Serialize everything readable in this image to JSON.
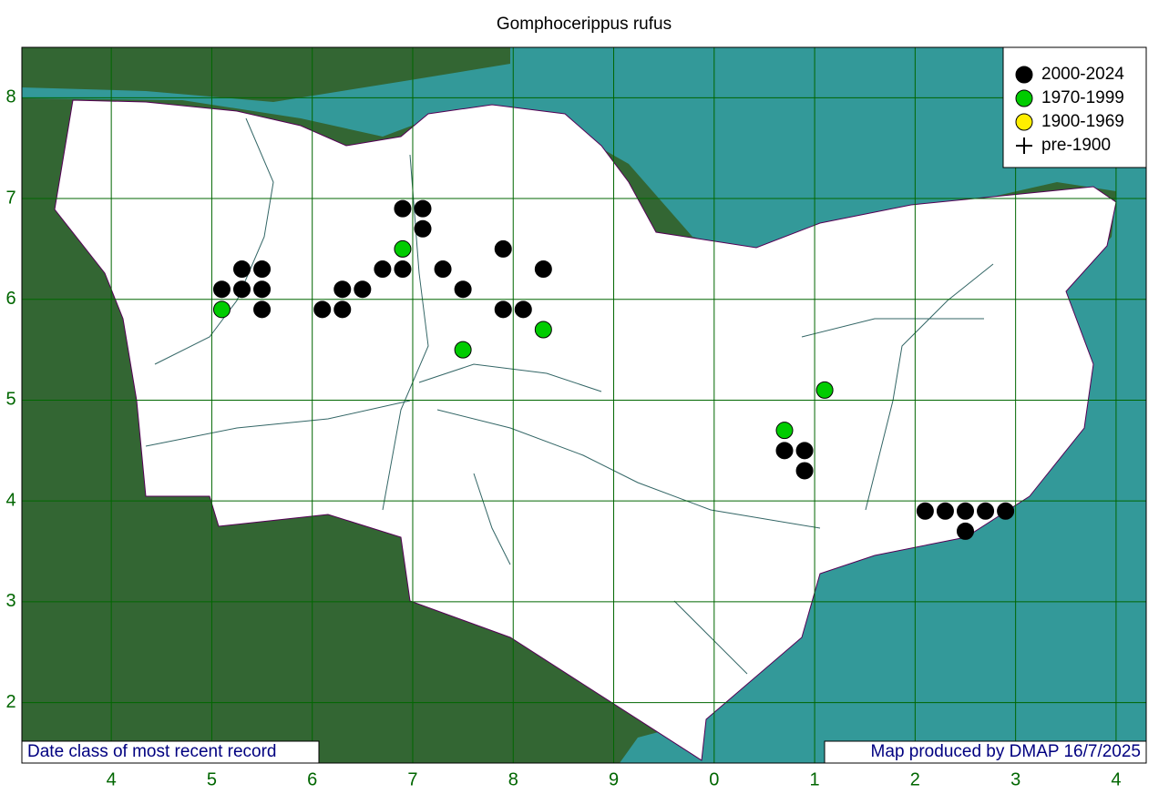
{
  "chart_data": {
    "type": "scatter",
    "title": "Gomphocerippus rufus",
    "footnote_left": "Date class of most recent record",
    "footnote_right": "Map produced by DMAP 16/7/2025",
    "xlim": [
      3.11,
      14.3
    ],
    "ylim": [
      1.4,
      8.5
    ],
    "xticks": [
      4,
      5,
      6,
      7,
      8,
      9,
      {
        "value": 10,
        "label": "0"
      },
      {
        "value": 11,
        "label": "1"
      },
      {
        "value": 12,
        "label": "2"
      },
      {
        "value": 13,
        "label": "3"
      },
      {
        "value": 14,
        "label": "4"
      }
    ],
    "yticks": [
      2,
      3,
      4,
      5,
      6,
      7,
      8
    ],
    "grid": true,
    "legend": "top-right",
    "series": [
      {
        "name": "2000-2024",
        "color": "#000000",
        "marker": "circle",
        "x": [
          6.9,
          7.1,
          7.1,
          5.1,
          5.3,
          5.5,
          5.3,
          5.5,
          5.5,
          6.1,
          6.3,
          6.3,
          6.5,
          6.7,
          6.9,
          7.3,
          7.5,
          7.9,
          8.3,
          7.9,
          8.1,
          10.7,
          10.9,
          10.9,
          12.1,
          12.3,
          12.5,
          12.7,
          12.9,
          12.5
        ],
        "y": [
          6.9,
          6.9,
          6.7,
          6.1,
          6.3,
          6.3,
          6.1,
          6.1,
          5.9,
          5.9,
          6.1,
          5.9,
          6.1,
          6.3,
          6.3,
          6.3,
          6.1,
          6.5,
          6.3,
          5.9,
          5.9,
          4.5,
          4.5,
          4.3,
          3.9,
          3.9,
          3.9,
          3.9,
          3.9,
          3.7
        ]
      },
      {
        "name": "1970-1999",
        "color": "#00cc00",
        "marker": "circle",
        "x": [
          5.1,
          6.9,
          7.5,
          8.3,
          10.7,
          11.1
        ],
        "y": [
          5.9,
          6.5,
          5.5,
          5.7,
          4.7,
          5.1
        ]
      },
      {
        "name": "1900-1969",
        "color": "#ffee00",
        "marker": "circle",
        "x": [],
        "y": []
      },
      {
        "name": "pre-1900",
        "color": "#000000",
        "marker": "plus",
        "x": [],
        "y": []
      }
    ]
  }
}
